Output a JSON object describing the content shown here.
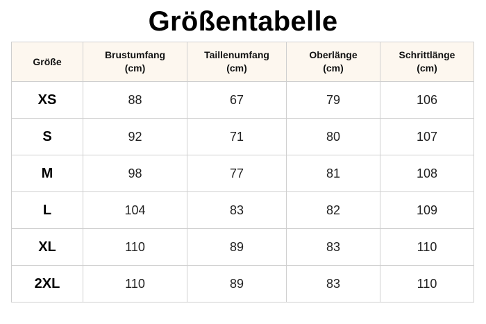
{
  "title": "Größentabelle",
  "table": {
    "headers": [
      [
        "Größe"
      ],
      [
        "Brustumfang",
        "(cm)"
      ],
      [
        "Taillenumfang",
        "(cm)"
      ],
      [
        "Oberlänge",
        "(cm)"
      ],
      [
        "Schrittlänge",
        "(cm)"
      ]
    ],
    "rows": [
      [
        "XS",
        "88",
        "67",
        "79",
        "106"
      ],
      [
        "S",
        "92",
        "71",
        "80",
        "107"
      ],
      [
        "M",
        "98",
        "77",
        "81",
        "108"
      ],
      [
        "L",
        "104",
        "83",
        "82",
        "109"
      ],
      [
        "XL",
        "110",
        "89",
        "83",
        "110"
      ],
      [
        "2XL",
        "110",
        "89",
        "83",
        "110"
      ]
    ]
  },
  "colors": {
    "header_background": "#fdf7ef",
    "border": "#cfcfcf",
    "text": "#111111"
  }
}
